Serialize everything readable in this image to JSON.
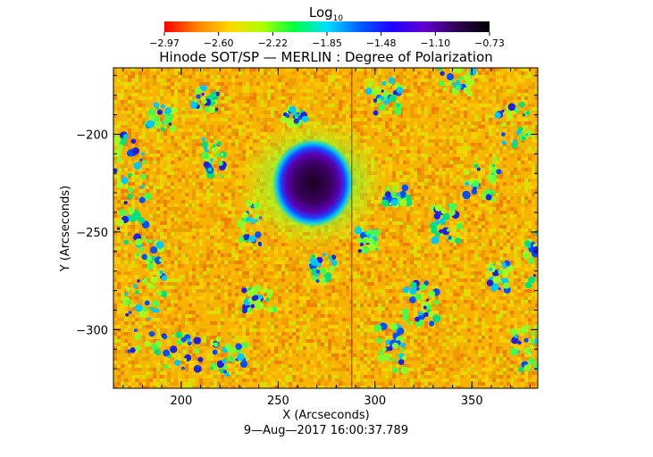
{
  "chart_data": {
    "type": "heatmap",
    "title": "Hinode SOT/SP — MERLIN : Degree of Polarization",
    "subtitle": "9—Aug—2017 16:00:37.789",
    "xlabel": "X (Arcseconds)",
    "ylabel": "Y (Arcseconds)",
    "xlim": [
      165,
      384
    ],
    "ylim": [
      -330,
      -166
    ],
    "x_ticks": [
      "200",
      "250",
      "300",
      "350"
    ],
    "x_tick_values": [
      200,
      250,
      300,
      350
    ],
    "y_ticks": [
      "−200",
      "−250",
      "−300"
    ],
    "y_tick_values": [
      -200,
      -250,
      -300
    ],
    "colorbar": {
      "label_base": "Log",
      "label_sub": "10",
      "ticks": [
        "−2.97",
        "−2.60",
        "−2.22",
        "−1.85",
        "−1.48",
        "−1.10",
        "−0.73"
      ],
      "min": -2.97,
      "max": -0.73,
      "colors": [
        "#ff0000",
        "#ff8000",
        "#ffd700",
        "#b0ff00",
        "#00ff40",
        "#00e0ff",
        "#0060ff",
        "#2000ff",
        "#6000d0",
        "#300050",
        "#000000"
      ]
    },
    "features": {
      "sunspot": {
        "x": 268,
        "y": -225,
        "value": -0.73
      },
      "background_value": -2.4,
      "vertical_line_x": 288
    }
  }
}
